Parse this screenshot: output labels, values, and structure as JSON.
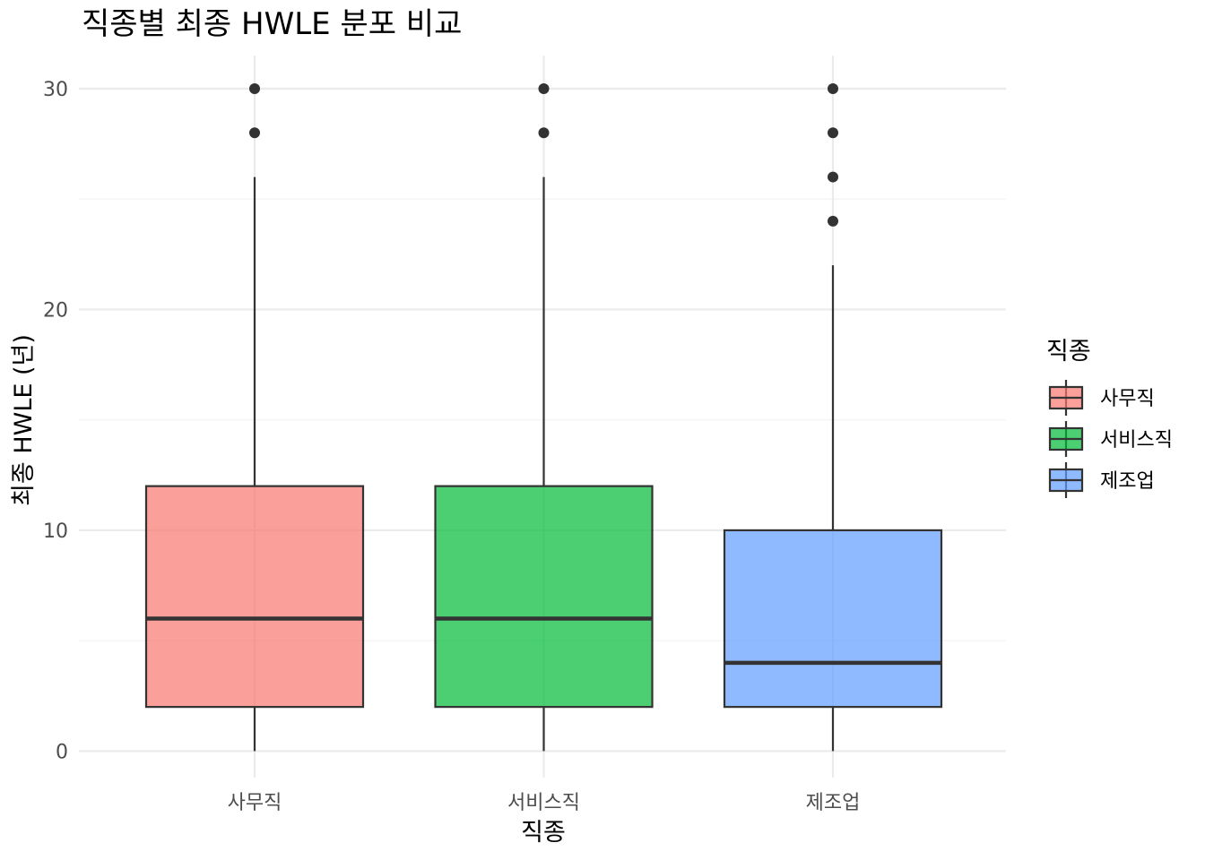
{
  "chart_data": {
    "type": "boxplot",
    "title": "직종별 최종 HWLE 분포 비교",
    "xlabel": "직종",
    "ylabel": "최종 HWLE (년)",
    "ylim": [
      -1.2,
      31.5
    ],
    "y_ticks": [
      0,
      10,
      20,
      30
    ],
    "grid": true,
    "legend": {
      "title": "직종",
      "position": "right"
    },
    "categories": [
      "사무직",
      "서비스직",
      "제조업"
    ],
    "series": [
      {
        "name": "사무직",
        "color": "#F8766D",
        "min": 0,
        "q1": 2,
        "median": 6,
        "q3": 12,
        "max": 26,
        "outliers": [
          28,
          30
        ]
      },
      {
        "name": "서비스직",
        "color": "#00BA38",
        "min": 0,
        "q1": 2,
        "median": 6,
        "q3": 12,
        "max": 26,
        "outliers": [
          28,
          30
        ]
      },
      {
        "name": "제조업",
        "color": "#619CFF",
        "min": 0,
        "q1": 2,
        "median": 4,
        "q3": 10,
        "max": 22,
        "outliers": [
          24,
          26,
          28,
          30
        ]
      }
    ]
  }
}
